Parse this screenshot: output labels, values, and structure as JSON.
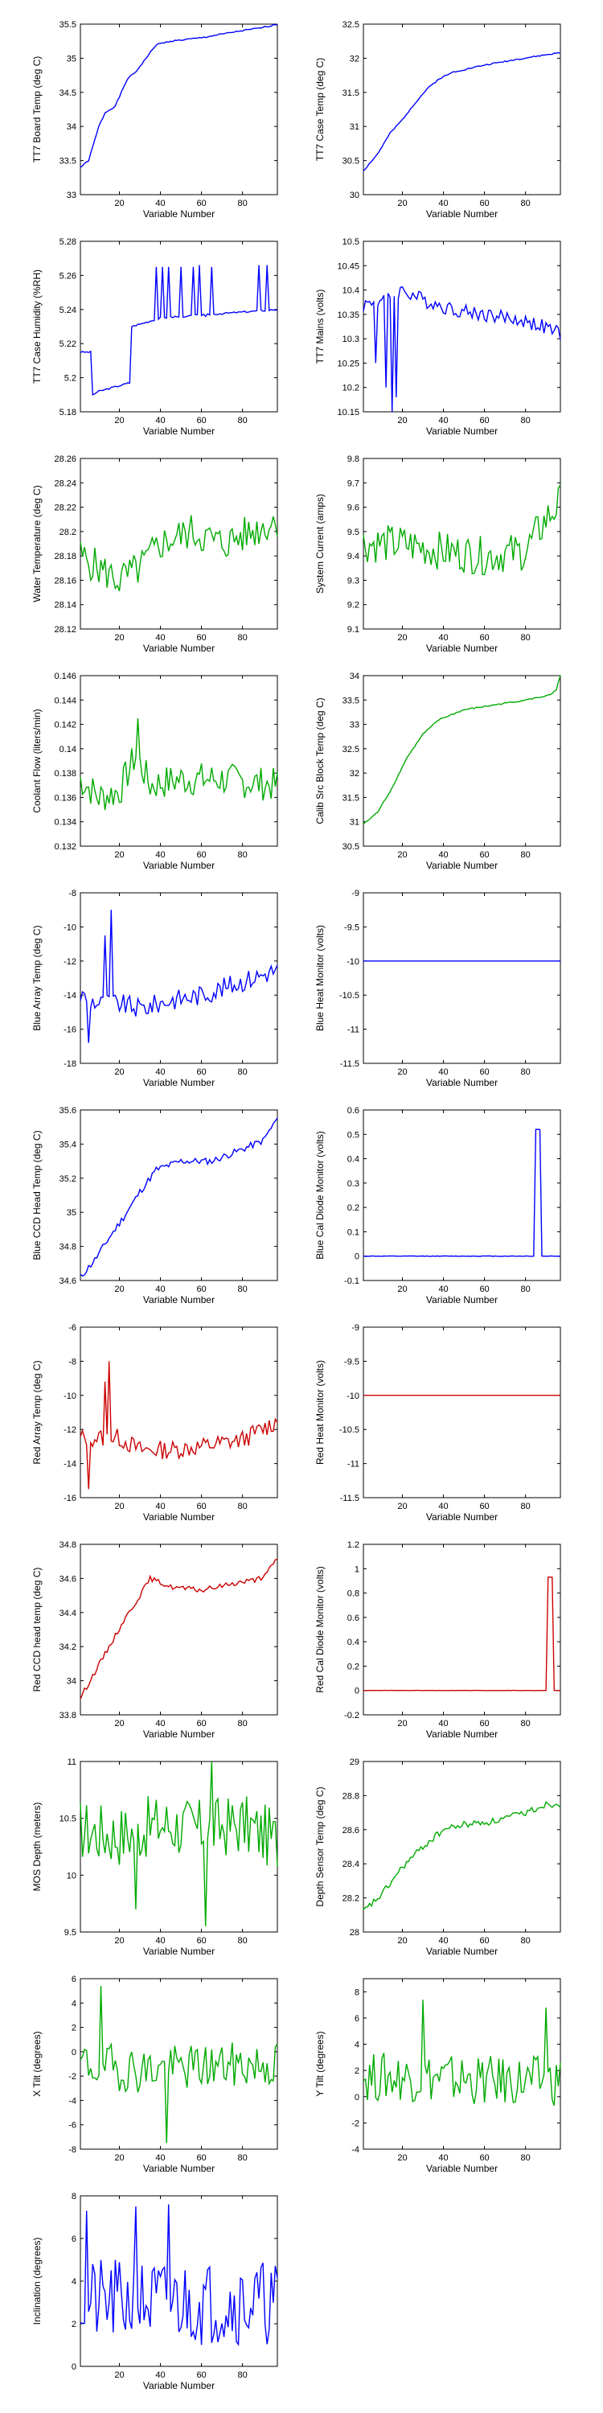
{
  "figure": {
    "xlabel": "Variable Number"
  },
  "chart_data": [
    {
      "type": "line",
      "color": "#0000ff",
      "ylabel": "TT7 Board Temp (deg C)",
      "xlim": [
        1,
        97
      ],
      "ylim": [
        33,
        35.5
      ],
      "xticks": [
        20,
        40,
        60,
        80
      ],
      "yticks": [
        33,
        33.5,
        34,
        34.5,
        35,
        35.5
      ],
      "keypoints": [
        [
          1,
          33.4
        ],
        [
          5,
          33.5
        ],
        [
          10,
          34.0
        ],
        [
          13,
          34.2
        ],
        [
          18,
          34.3
        ],
        [
          24,
          34.7
        ],
        [
          28,
          34.8
        ],
        [
          33,
          35.0
        ],
        [
          38,
          35.2
        ],
        [
          45,
          35.25
        ],
        [
          60,
          35.3
        ],
        [
          75,
          35.38
        ],
        [
          90,
          35.45
        ],
        [
          97,
          35.5
        ]
      ],
      "noise": 0.02,
      "seed": 1
    },
    {
      "type": "line",
      "color": "#0000ff",
      "ylabel": "TT7 Case Temp (deg C)",
      "xlim": [
        1,
        97
      ],
      "ylim": [
        30,
        32.5
      ],
      "xticks": [
        20,
        40,
        60,
        80
      ],
      "yticks": [
        30,
        30.5,
        31,
        31.5,
        32,
        32.5
      ],
      "keypoints": [
        [
          1,
          30.35
        ],
        [
          8,
          30.6
        ],
        [
          14,
          30.9
        ],
        [
          20,
          31.1
        ],
        [
          25,
          31.3
        ],
        [
          32,
          31.55
        ],
        [
          38,
          31.7
        ],
        [
          45,
          31.8
        ],
        [
          60,
          31.9
        ],
        [
          75,
          31.98
        ],
        [
          90,
          32.05
        ],
        [
          97,
          32.08
        ]
      ],
      "noise": 0.02,
      "seed": 2
    },
    {
      "type": "line",
      "color": "#0000ff",
      "ylabel": "TT7 Case Humidity (%RH)",
      "xlim": [
        1,
        97
      ],
      "ylim": [
        5.18,
        5.28
      ],
      "xticks": [
        20,
        40,
        60,
        80
      ],
      "yticks": [
        5.18,
        5.2,
        5.22,
        5.24,
        5.26,
        5.28
      ],
      "keypoints": [
        [
          1,
          5.215
        ],
        [
          6,
          5.215
        ],
        [
          7,
          5.19
        ],
        [
          10,
          5.192
        ],
        [
          25,
          5.197
        ],
        [
          26,
          5.23
        ],
        [
          40,
          5.235
        ],
        [
          97,
          5.24
        ]
      ],
      "noise": 0.001,
      "seed": 3,
      "spikes": [
        [
          38,
          5.265
        ],
        [
          41,
          5.265
        ],
        [
          44,
          5.265
        ],
        [
          47,
          5.236
        ],
        [
          50,
          5.265
        ],
        [
          53,
          5.236
        ],
        [
          56,
          5.265
        ],
        [
          59,
          5.266
        ],
        [
          62,
          5.236
        ],
        [
          65,
          5.265
        ],
        [
          88,
          5.266
        ],
        [
          92,
          5.266
        ]
      ]
    },
    {
      "type": "line",
      "color": "#0000ff",
      "ylabel": "TT7 Mains  (volts)",
      "xlim": [
        1,
        97
      ],
      "ylim": [
        10.15,
        10.5
      ],
      "xticks": [
        20,
        40,
        60,
        80
      ],
      "yticks": [
        10.15,
        10.2,
        10.25,
        10.3,
        10.35,
        10.4,
        10.45,
        10.5
      ],
      "keypoints": [
        [
          1,
          10.37
        ],
        [
          10,
          10.38
        ],
        [
          20,
          10.4
        ],
        [
          30,
          10.38
        ],
        [
          45,
          10.36
        ],
        [
          60,
          10.35
        ],
        [
          75,
          10.34
        ],
        [
          85,
          10.33
        ],
        [
          97,
          10.31
        ]
      ],
      "noise": 0.03,
      "seed": 4,
      "spikes": [
        [
          7,
          10.25
        ],
        [
          12,
          10.2
        ],
        [
          15,
          10.15
        ],
        [
          17,
          10.18
        ]
      ]
    },
    {
      "type": "line",
      "color": "#00aa00",
      "ylabel": "Water Temperature (deg C)",
      "xlim": [
        1,
        97
      ],
      "ylim": [
        28.12,
        28.26
      ],
      "xticks": [
        20,
        40,
        60,
        80
      ],
      "yticks": [
        28.12,
        28.14,
        28.16,
        28.18,
        28.2,
        28.22,
        28.24,
        28.26
      ],
      "keypoints": [
        [
          1,
          28.18
        ],
        [
          10,
          28.17
        ],
        [
          20,
          28.16
        ],
        [
          30,
          28.17
        ],
        [
          40,
          28.19
        ],
        [
          55,
          28.2
        ],
        [
          70,
          28.19
        ],
        [
          85,
          28.2
        ],
        [
          97,
          28.21
        ]
      ],
      "noise": 0.03,
      "seed": 5
    },
    {
      "type": "line",
      "color": "#00aa00",
      "ylabel": "System Current (amps)",
      "xlim": [
        1,
        97
      ],
      "ylim": [
        9.1,
        9.8
      ],
      "xticks": [
        20,
        40,
        60,
        80
      ],
      "yticks": [
        9.1,
        9.2,
        9.3,
        9.4,
        9.5,
        9.6,
        9.7,
        9.8
      ],
      "keypoints": [
        [
          1,
          9.45
        ],
        [
          20,
          9.45
        ],
        [
          40,
          9.42
        ],
        [
          60,
          9.4
        ],
        [
          80,
          9.42
        ],
        [
          90,
          9.55
        ],
        [
          97,
          9.62
        ]
      ],
      "noise": 0.16,
      "seed": 6
    },
    {
      "type": "line",
      "color": "#00aa00",
      "ylabel": "Coolant Flow (liters/min)",
      "xlim": [
        1,
        97
      ],
      "ylim": [
        0.132,
        0.146
      ],
      "xticks": [
        20,
        40,
        60,
        80
      ],
      "yticks": [
        0.132,
        0.134,
        0.136,
        0.138,
        0.14,
        0.142,
        0.144,
        0.146
      ],
      "keypoints": [
        [
          1,
          0.1375
        ],
        [
          10,
          0.136
        ],
        [
          20,
          0.1365
        ],
        [
          28,
          0.1395
        ],
        [
          35,
          0.137
        ],
        [
          50,
          0.1375
        ],
        [
          70,
          0.1375
        ],
        [
          97,
          0.137
        ]
      ],
      "noise": 0.0028,
      "seed": 7,
      "spikes": [
        [
          29,
          0.1425
        ]
      ]
    },
    {
      "type": "line",
      "color": "#00aa00",
      "ylabel": "Calib Src Block Temp (deg C)",
      "xlim": [
        1,
        97
      ],
      "ylim": [
        30.5,
        34
      ],
      "xticks": [
        20,
        40,
        60,
        80
      ],
      "yticks": [
        30.5,
        31,
        31.5,
        32,
        32.5,
        33,
        33.5,
        34
      ],
      "keypoints": [
        [
          1,
          30.95
        ],
        [
          8,
          31.2
        ],
        [
          15,
          31.7
        ],
        [
          22,
          32.3
        ],
        [
          30,
          32.8
        ],
        [
          38,
          33.1
        ],
        [
          50,
          33.3
        ],
        [
          65,
          33.4
        ],
        [
          80,
          33.5
        ],
        [
          92,
          33.6
        ],
        [
          95,
          33.7
        ],
        [
          97,
          34.0
        ]
      ],
      "noise": 0.03,
      "seed": 8
    },
    {
      "type": "line",
      "color": "#0000ff",
      "ylabel": "Blue Array Temp (deg C)",
      "xlim": [
        1,
        97
      ],
      "ylim": [
        -18,
        -8
      ],
      "xticks": [
        20,
        40,
        60,
        80
      ],
      "yticks": [
        -18,
        -16,
        -14,
        -12,
        -10,
        -8
      ],
      "keypoints": [
        [
          1,
          -14
        ],
        [
          10,
          -14.5
        ],
        [
          20,
          -14.5
        ],
        [
          30,
          -14.8
        ],
        [
          45,
          -14.3
        ],
        [
          60,
          -14.0
        ],
        [
          80,
          -13.2
        ],
        [
          97,
          -12.5
        ]
      ],
      "noise": 1.2,
      "seed": 9,
      "spikes": [
        [
          13,
          -10.5
        ],
        [
          16,
          -9.0
        ],
        [
          5,
          -16.8
        ]
      ]
    },
    {
      "type": "line",
      "color": "#0000ff",
      "ylabel": "Blue Heat Monitor (volts)",
      "xlim": [
        1,
        97
      ],
      "ylim": [
        -11.5,
        -9
      ],
      "xticks": [
        20,
        40,
        60,
        80
      ],
      "yticks": [
        -11.5,
        -11,
        -10.5,
        -10,
        -9.5,
        -9
      ],
      "keypoints": [
        [
          1,
          -10
        ],
        [
          97,
          -10
        ]
      ],
      "noise": 0,
      "seed": 10
    },
    {
      "type": "line",
      "color": "#0000ff",
      "ylabel": "Blue CCD Head Temp (deg C)",
      "xlim": [
        1,
        97
      ],
      "ylim": [
        34.6,
        35.6
      ],
      "xticks": [
        20,
        40,
        60,
        80
      ],
      "yticks": [
        34.6,
        34.8,
        35,
        35.2,
        35.4,
        35.6
      ],
      "keypoints": [
        [
          1,
          34.62
        ],
        [
          8,
          34.72
        ],
        [
          15,
          34.85
        ],
        [
          22,
          34.97
        ],
        [
          30,
          35.12
        ],
        [
          38,
          35.25
        ],
        [
          50,
          35.3
        ],
        [
          65,
          35.3
        ],
        [
          80,
          35.37
        ],
        [
          90,
          35.42
        ],
        [
          97,
          35.55
        ]
      ],
      "noise": 0.04,
      "seed": 11
    },
    {
      "type": "line",
      "color": "#0000ff",
      "ylabel": "Blue Cal Diode Monitor (volts)",
      "xlim": [
        1,
        97
      ],
      "ylim": [
        -0.1,
        0.6
      ],
      "xticks": [
        20,
        40,
        60,
        80
      ],
      "yticks": [
        -0.1,
        0,
        0.1,
        0.2,
        0.3,
        0.4,
        0.5,
        0.6
      ],
      "keypoints": [
        [
          1,
          0
        ],
        [
          84,
          0
        ],
        [
          85,
          0.52
        ],
        [
          87,
          0.52
        ],
        [
          88,
          0
        ],
        [
          97,
          0
        ]
      ],
      "noise": 0.002,
      "seed": 12
    },
    {
      "type": "line",
      "color": "#cc0000",
      "ylabel": "Red Array Temp (deg C)",
      "xlim": [
        1,
        97
      ],
      "ylim": [
        -16,
        -6
      ],
      "xticks": [
        20,
        40,
        60,
        80
      ],
      "yticks": [
        -16,
        -14,
        -12,
        -10,
        -8,
        -6
      ],
      "keypoints": [
        [
          1,
          -12.5
        ],
        [
          10,
          -12.5
        ],
        [
          20,
          -12.5
        ],
        [
          30,
          -13.2
        ],
        [
          45,
          -13.2
        ],
        [
          60,
          -13.0
        ],
        [
          80,
          -12.6
        ],
        [
          97,
          -11.5
        ]
      ],
      "noise": 1.1,
      "seed": 13,
      "spikes": [
        [
          13,
          -9.2
        ],
        [
          15,
          -8.0
        ],
        [
          5,
          -15.5
        ]
      ]
    },
    {
      "type": "line",
      "color": "#cc0000",
      "ylabel": "Red Heat Monitor (volts)",
      "xlim": [
        1,
        97
      ],
      "ylim": [
        -11.5,
        -9
      ],
      "xticks": [
        20,
        40,
        60,
        80
      ],
      "yticks": [
        -11.5,
        -11,
        -10.5,
        -10,
        -9.5,
        -9
      ],
      "keypoints": [
        [
          1,
          -10
        ],
        [
          97,
          -10
        ]
      ],
      "noise": 0,
      "seed": 14
    },
    {
      "type": "line",
      "color": "#cc0000",
      "ylabel": "Red CCD head temp (deg C)",
      "xlim": [
        1,
        97
      ],
      "ylim": [
        33.8,
        34.8
      ],
      "xticks": [
        20,
        40,
        60,
        80
      ],
      "yticks": [
        33.8,
        34,
        34.2,
        34.4,
        34.6,
        34.8
      ],
      "keypoints": [
        [
          1,
          33.9
        ],
        [
          8,
          34.05
        ],
        [
          15,
          34.2
        ],
        [
          22,
          34.35
        ],
        [
          30,
          34.5
        ],
        [
          35,
          34.6
        ],
        [
          45,
          34.55
        ],
        [
          60,
          34.53
        ],
        [
          75,
          34.57
        ],
        [
          90,
          34.6
        ],
        [
          97,
          34.72
        ]
      ],
      "noise": 0.03,
      "seed": 15
    },
    {
      "type": "line",
      "color": "#cc0000",
      "ylabel": "Red Cal Diode Monitor (volts)",
      "xlim": [
        1,
        97
      ],
      "ylim": [
        -0.2,
        1.2
      ],
      "xticks": [
        20,
        40,
        60,
        80
      ],
      "yticks": [
        -0.2,
        0,
        0.2,
        0.4,
        0.6,
        0.8,
        1,
        1.2
      ],
      "keypoints": [
        [
          1,
          0
        ],
        [
          90,
          0
        ],
        [
          91,
          0.93
        ],
        [
          93,
          0.93
        ],
        [
          94,
          0
        ],
        [
          97,
          0
        ]
      ],
      "noise": 0.002,
      "seed": 16
    },
    {
      "type": "line",
      "color": "#00aa00",
      "ylabel": "MOS Depth  (meters)",
      "xlim": [
        1,
        97
      ],
      "ylim": [
        9.5,
        11
      ],
      "xticks": [
        20,
        40,
        60,
        80
      ],
      "yticks": [
        9.5,
        10,
        10.5,
        11
      ],
      "keypoints": [
        [
          1,
          10.4
        ],
        [
          20,
          10.35
        ],
        [
          40,
          10.45
        ],
        [
          60,
          10.4
        ],
        [
          80,
          10.45
        ],
        [
          97,
          10.3
        ]
      ],
      "noise": 0.55,
      "seed": 17,
      "spikes": [
        [
          28,
          9.7
        ],
        [
          62,
          9.55
        ],
        [
          65,
          11.0
        ]
      ]
    },
    {
      "type": "line",
      "color": "#00aa00",
      "ylabel": "Depth Sensor Temp (deg C)",
      "xlim": [
        1,
        97
      ],
      "ylim": [
        28,
        29
      ],
      "xticks": [
        20,
        40,
        60,
        80
      ],
      "yticks": [
        28,
        28.2,
        28.4,
        28.6,
        28.8,
        29
      ],
      "keypoints": [
        [
          1,
          28.12
        ],
        [
          10,
          28.22
        ],
        [
          20,
          28.38
        ],
        [
          30,
          28.5
        ],
        [
          40,
          28.6
        ],
        [
          50,
          28.63
        ],
        [
          65,
          28.65
        ],
        [
          80,
          28.7
        ],
        [
          90,
          28.75
        ],
        [
          97,
          28.75
        ]
      ],
      "noise": 0.04,
      "seed": 18
    },
    {
      "type": "line",
      "color": "#00aa00",
      "ylabel": "X Tilt  (degrees)",
      "xlim": [
        1,
        97
      ],
      "ylim": [
        -8,
        6
      ],
      "xticks": [
        20,
        40,
        60,
        80
      ],
      "yticks": [
        -8,
        -6,
        -4,
        -2,
        0,
        2,
        4,
        6
      ],
      "keypoints": [
        [
          1,
          -1
        ],
        [
          30,
          -1.5
        ],
        [
          60,
          -1.2
        ],
        [
          97,
          -1
        ]
      ],
      "noise": 3.8,
      "seed": 19,
      "spikes": [
        [
          11,
          5.4
        ],
        [
          43,
          -7.5
        ]
      ]
    },
    {
      "type": "line",
      "color": "#00aa00",
      "ylabel": "Y Tilt  (degrees)",
      "xlim": [
        1,
        97
      ],
      "ylim": [
        -4,
        9
      ],
      "xticks": [
        20,
        40,
        60,
        80
      ],
      "yticks": [
        -4,
        -2,
        0,
        2,
        4,
        6,
        8
      ],
      "keypoints": [
        [
          1,
          1.5
        ],
        [
          30,
          1.5
        ],
        [
          60,
          1.2
        ],
        [
          97,
          1.2
        ]
      ],
      "noise": 3.8,
      "seed": 20,
      "spikes": [
        [
          30,
          7.4
        ],
        [
          90,
          6.8
        ]
      ]
    },
    {
      "type": "line",
      "color": "#0000ff",
      "ylabel": "Inclination  (degrees)",
      "xlim": [
        1,
        97
      ],
      "ylim": [
        0,
        8
      ],
      "xticks": [
        20,
        40,
        60,
        80
      ],
      "yticks": [
        0,
        2,
        4,
        6,
        8
      ],
      "keypoints": [
        [
          1,
          3
        ],
        [
          30,
          3
        ],
        [
          60,
          3
        ],
        [
          97,
          3
        ]
      ],
      "noise": 4.0,
      "seed": 21,
      "spikes": [
        [
          4,
          7.3
        ],
        [
          28,
          7.5
        ],
        [
          44,
          7.6
        ]
      ]
    }
  ]
}
